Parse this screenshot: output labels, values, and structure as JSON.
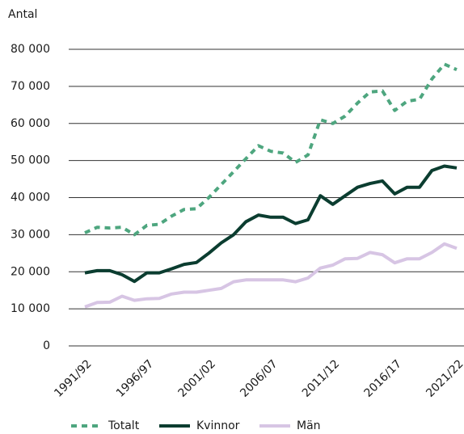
{
  "chart_data": {
    "type": "line",
    "ylabel": "Antal",
    "categories": [
      "1991/92",
      null,
      null,
      null,
      null,
      "1996/97",
      null,
      null,
      null,
      null,
      "2001/02",
      null,
      null,
      null,
      null,
      "2006/07",
      null,
      null,
      null,
      null,
      "2011/12",
      null,
      null,
      null,
      null,
      "2016/17",
      null,
      null,
      null,
      null,
      "2021/22"
    ],
    "series": [
      {
        "name": "Totalt",
        "color": "#4ea67f",
        "dashed": true,
        "values": [
          30500,
          32000,
          31800,
          32000,
          30000,
          32500,
          32800,
          35000,
          36800,
          37000,
          40000,
          43500,
          47000,
          50500,
          54000,
          52500,
          52000,
          49500,
          51500,
          61000,
          60000,
          62000,
          65500,
          68500,
          68800,
          63500,
          66000,
          66500,
          72000,
          76000,
          74500
        ]
      },
      {
        "name": "Kvinnor",
        "color": "#0b3d30",
        "dashed": false,
        "values": [
          19700,
          20300,
          20300,
          19200,
          17400,
          19700,
          19700,
          20800,
          22000,
          22500,
          25000,
          27800,
          30000,
          33500,
          35300,
          34700,
          34700,
          33000,
          34000,
          40500,
          38200,
          40500,
          42800,
          43800,
          44500,
          41000,
          42800,
          42800,
          47300,
          48500,
          48000
        ]
      },
      {
        "name": "Män",
        "color": "#d7c5e4",
        "dashed": false,
        "values": [
          10500,
          11700,
          11800,
          13400,
          12300,
          12700,
          12800,
          14000,
          14500,
          14500,
          15000,
          15500,
          17300,
          17800,
          17800,
          17800,
          17800,
          17300,
          18300,
          21000,
          21800,
          23500,
          23600,
          25200,
          24600,
          22400,
          23500,
          23500,
          25200,
          27500,
          26300
        ]
      }
    ],
    "ylim": [
      0,
      80000
    ],
    "yticks": [
      0,
      {
        "value": 10000,
        "label": "10 000"
      },
      {
        "value": 20000,
        "label": "20 000"
      },
      {
        "value": 30000,
        "label": "30 000"
      },
      {
        "value": 40000,
        "label": "40 000"
      },
      {
        "value": 50000,
        "label": "50 000"
      },
      {
        "value": 60000,
        "label": "60 000"
      },
      {
        "value": 70000,
        "label": "70 000"
      },
      {
        "value": 80000,
        "label": "80 000"
      }
    ],
    "grid": true,
    "legend": "bottom"
  }
}
